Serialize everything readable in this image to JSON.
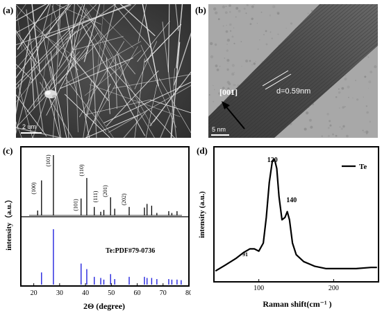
{
  "panels": {
    "a": {
      "label": "(a)",
      "scale_bar": "2 um"
    },
    "b": {
      "label": "(b)",
      "direction_label": "[001]",
      "spacing_label": "d=0.59nm",
      "scale_bar": "5 nm"
    },
    "c": {
      "label": "(c)",
      "reference_label": "Te:PDF#79-0736"
    },
    "d": {
      "label": "(d)"
    }
  },
  "chart_data": [
    {
      "panel": "c",
      "type": "bar",
      "title": "",
      "xlabel": "2Θ (degree)",
      "ylabel": "intensity（a.u.）",
      "xlim": [
        15,
        80
      ],
      "x_ticks": [
        20,
        30,
        40,
        50,
        60,
        70,
        80
      ],
      "grid": false,
      "series": [
        {
          "role": "measured pattern",
          "x": [
            21.5,
            23.0,
            27.6,
            38.3,
            40.5,
            43.4,
            45.9,
            47.1,
            49.7,
            51.3,
            56.9,
            62.8,
            63.8,
            65.6,
            67.6,
            72.2,
            73.4,
            75.4
          ],
          "values": [
            8,
            58,
            100,
            28,
            62,
            14,
            6,
            9,
            30,
            11,
            14,
            13,
            19,
            16,
            4,
            7,
            4,
            7
          ]
        },
        {
          "role": "reference pattern",
          "name": "Te:PDF#79-0736",
          "x": [
            23.0,
            27.6,
            38.3,
            40.5,
            43.4,
            45.9,
            47.1,
            49.7,
            51.3,
            56.9,
            62.8,
            63.8,
            65.6,
            67.6,
            72.2,
            73.4,
            75.4,
            77.0
          ],
          "values": [
            22,
            100,
            38,
            28,
            14,
            12,
            9,
            19,
            10,
            14,
            14,
            12,
            12,
            10,
            10,
            9,
            9,
            8
          ]
        }
      ],
      "annotations": [
        {
          "text": "(100)",
          "x": 23.0
        },
        {
          "text": "(101)",
          "x": 27.6
        },
        {
          "text": "(101)",
          "x": 38.3
        },
        {
          "text": "(110)",
          "x": 40.5
        },
        {
          "text": "(111)",
          "x": 45.9
        },
        {
          "text": "(201)",
          "x": 49.7
        },
        {
          "text": "(202)",
          "x": 56.9
        }
      ]
    },
    {
      "panel": "d",
      "type": "line",
      "title": "",
      "xlabel": "Raman shift(cm⁻¹ )",
      "ylabel": "intensity (a.u.)",
      "xlim": [
        40,
        260
      ],
      "x_ticks": [
        100,
        200
      ],
      "grid": false,
      "legend": {
        "position": "top-right",
        "entries": [
          "Te"
        ]
      },
      "series": [
        {
          "name": "Te",
          "x": [
            42,
            55,
            70,
            80,
            88,
            94,
            100,
            106,
            110,
            114,
            118,
            121,
            124,
            127,
            131,
            135,
            138,
            141,
            145,
            150,
            160,
            175,
            190,
            210,
            230,
            250,
            258
          ],
          "y": [
            4,
            9,
            15,
            20,
            23,
            23,
            21,
            28,
            50,
            80,
            98,
            100,
            92,
            68,
            48,
            50,
            55,
            48,
            28,
            18,
            12,
            8,
            6,
            6,
            6,
            7,
            7
          ]
        }
      ],
      "annotations": [
        {
          "text": "91",
          "x": 91
        },
        {
          "text": "120",
          "x": 121
        },
        {
          "text": "140",
          "x": 140
        }
      ]
    }
  ]
}
